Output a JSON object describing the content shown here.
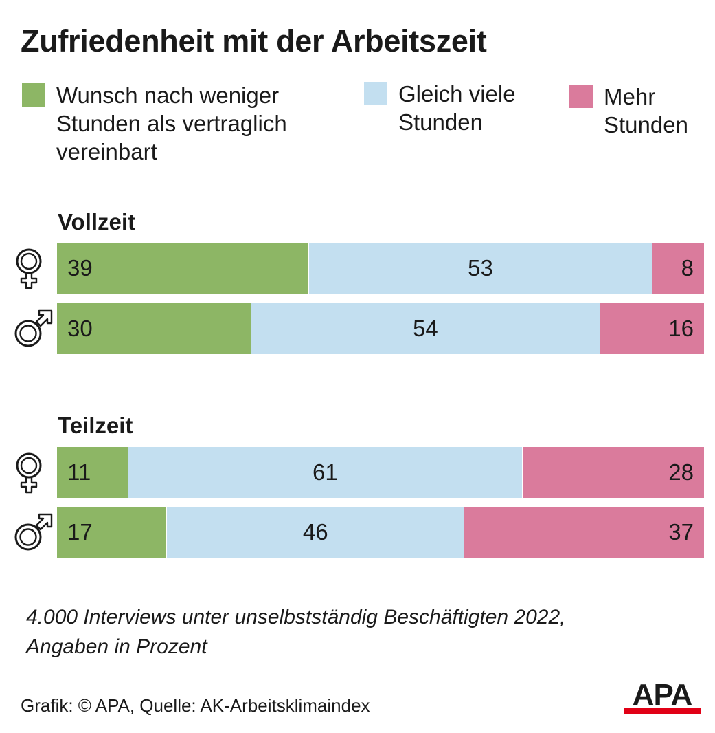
{
  "title": "Zufriedenheit mit der Arbeitszeit",
  "colors": {
    "weniger": "#8db665",
    "gleich": "#c3dff0",
    "mehr": "#da7b9c",
    "logo_red": "#e10016"
  },
  "chart_data": {
    "type": "bar",
    "orientation": "horizontal",
    "stacked": true,
    "title": "Zufriedenheit mit der Arbeitszeit",
    "legend_position": "top",
    "legend": [
      {
        "key": "weniger",
        "label": "Wunsch nach weniger\nStunden als vertraglich\nvereinbart"
      },
      {
        "key": "gleich",
        "label": "Gleich viele\nStunden"
      },
      {
        "key": "mehr",
        "label": "Mehr\nStunden"
      }
    ],
    "groups": [
      {
        "label": "Vollzeit",
        "rows": [
          {
            "icon": "female-icon",
            "values": [
              39,
              53,
              8
            ]
          },
          {
            "icon": "male-icon",
            "values": [
              30,
              54,
              16
            ]
          }
        ]
      },
      {
        "label": "Teilzeit",
        "rows": [
          {
            "icon": "female-icon",
            "values": [
              11,
              61,
              28
            ]
          },
          {
            "icon": "male-icon",
            "values": [
              17,
              46,
              37
            ]
          }
        ]
      }
    ],
    "unit": "%"
  },
  "note": "4.000 Interviews unter unselbstständig Beschäftigten 2022,\nAngaben in Prozent",
  "source": "Grafik: © APA, Quelle: AK-Arbeitsklimaindex",
  "logo": "APA"
}
